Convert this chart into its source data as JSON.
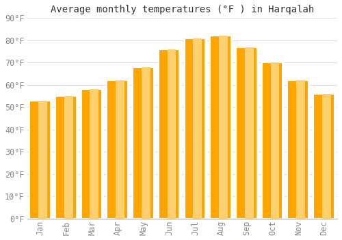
{
  "title": "Average monthly temperatures (°F ) in Harqalah",
  "months": [
    "Jan",
    "Feb",
    "Mar",
    "Apr",
    "May",
    "Jun",
    "Jul",
    "Aug",
    "Sep",
    "Oct",
    "Nov",
    "Dec"
  ],
  "values": [
    53,
    55,
    58,
    62,
    68,
    76,
    81,
    82,
    77,
    70,
    62,
    56
  ],
  "bar_color_top": "#FFA500",
  "bar_color_bottom": "#FFD070",
  "bar_edge_color": "#ffffff",
  "background_color": "#ffffff",
  "grid_color": "#e0e0e0",
  "ylim": [
    0,
    90
  ],
  "yticks": [
    0,
    10,
    20,
    30,
    40,
    50,
    60,
    70,
    80,
    90
  ],
  "title_fontsize": 10,
  "tick_fontsize": 8.5
}
